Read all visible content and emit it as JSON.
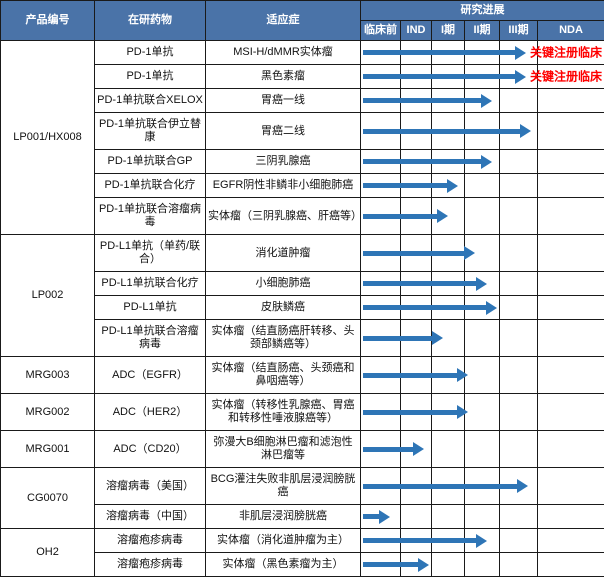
{
  "colors": {
    "header_bg": "#4a73a8",
    "header_text": "#ffffff",
    "arrow": "#2e75b6",
    "note_text": "#ff0000",
    "border": "#1a1a1a"
  },
  "chart_data": {
    "type": "table",
    "title": "研究进展",
    "columns": {
      "product": "产品编号",
      "drug": "在研药物",
      "indication": "适应症",
      "progress": "研究进展"
    },
    "phases": [
      "临床前",
      "IND",
      "I期",
      "II期",
      "III期",
      "NDA"
    ],
    "groups": [
      {
        "product": "LP001/HX008",
        "rows": [
          {
            "drug": "PD-1单抗",
            "indication": "MSI-H/dMMR实体瘤",
            "progress_pct": 67,
            "phase_reached": "III期",
            "note": "关键注册临床"
          },
          {
            "drug": "PD-1单抗",
            "indication": "黑色素瘤",
            "progress_pct": 67,
            "phase_reached": "III期",
            "note": "关键注册临床"
          },
          {
            "drug": "PD-1单抗联合XELOX",
            "indication": "胃癌一线",
            "progress_pct": 53,
            "phase_reached": "II期"
          },
          {
            "drug": "PD-1单抗联合伊立替康",
            "indication": "胃癌二线",
            "progress_pct": 69,
            "phase_reached": "III期"
          },
          {
            "drug": "PD-1单抗联合GP",
            "indication": "三阴乳腺癌",
            "progress_pct": 53,
            "phase_reached": "II期"
          },
          {
            "drug": "PD-1单抗联合化疗",
            "indication": "EGFR阴性非鳞非小细胞肺癌",
            "progress_pct": 39,
            "phase_reached": "I期"
          },
          {
            "drug": "PD-1单抗联合溶瘤病毒",
            "indication": "实体瘤（三阴乳腺癌、肝癌等）",
            "progress_pct": 35,
            "phase_reached": "I期"
          }
        ]
      },
      {
        "product": "LP002",
        "rows": [
          {
            "drug": "PD-L1单抗（单药/联合）",
            "indication": "消化道肿瘤",
            "progress_pct": 46,
            "phase_reached": "II期"
          },
          {
            "drug": "PD-L1单抗联合化疗",
            "indication": "小细胞肺癌",
            "progress_pct": 51,
            "phase_reached": "II期"
          },
          {
            "drug": "PD-L1单抗",
            "indication": "皮肤鳞癌",
            "progress_pct": 55,
            "phase_reached": "II期"
          },
          {
            "drug": "PD-L1单抗联合溶瘤病毒",
            "indication": "实体瘤（结直肠癌肝转移、头颈部鳞癌等）",
            "progress_pct": 33,
            "phase_reached": "I期"
          }
        ]
      },
      {
        "product": "MRG003",
        "rows": [
          {
            "drug": "ADC（EGFR）",
            "indication": "实体瘤（结直肠癌、头颈癌和鼻咽癌等）",
            "progress_pct": 43,
            "phase_reached": "II期"
          }
        ]
      },
      {
        "product": "MRG002",
        "rows": [
          {
            "drug": "ADC（HER2）",
            "indication": "实体瘤（转移性乳腺癌、胃癌和转移性唾液腺癌等）",
            "progress_pct": 43,
            "phase_reached": "II期"
          }
        ]
      },
      {
        "product": "MRG001",
        "rows": [
          {
            "drug": "ADC（CD20）",
            "indication": "弥漫大B细胞淋巴瘤和滤泡性淋巴瘤等",
            "progress_pct": 25,
            "phase_reached": "IND"
          }
        ]
      },
      {
        "product": "CG0070",
        "rows": [
          {
            "drug": "溶瘤病毒（美国）",
            "indication": "BCG灌注失败非肌层浸润膀胱癌",
            "progress_pct": 68,
            "phase_reached": "III期"
          },
          {
            "drug": "溶瘤病毒（中国）",
            "indication": "非肌层浸润膀胱癌",
            "progress_pct": 11,
            "phase_reached": "临床前"
          }
        ]
      },
      {
        "product": "OH2",
        "rows": [
          {
            "drug": "溶瘤疱疹病毒",
            "indication": "实体瘤（消化道肿瘤为主）",
            "progress_pct": 51,
            "phase_reached": "II期"
          },
          {
            "drug": "溶瘤疱疹病毒",
            "indication": "实体瘤（黑色素瘤为主）",
            "progress_pct": 27,
            "phase_reached": "IND"
          }
        ]
      }
    ]
  }
}
